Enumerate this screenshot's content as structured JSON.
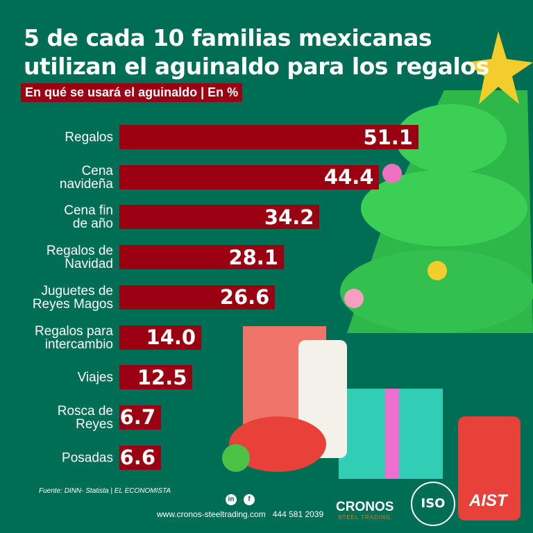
{
  "title_line1": "5 de cada 10 familias mexicanas",
  "title_line2": "utilizan el aguinaldo para los regalos",
  "subtitle": "En qué se usará el aguinaldo | En %",
  "colors": {
    "background": "#006e55",
    "bar": "#9b0012",
    "text": "#ffffff"
  },
  "chart_data": {
    "type": "bar",
    "orientation": "horizontal",
    "title": "En qué se usará el aguinaldo | En %",
    "categories": [
      "Regalos",
      "Cena navideña",
      "Cena fin de año",
      "Regalos de Navidad",
      "Juguetes de Reyes Magos",
      "Regalos para intercambio",
      "Viajes",
      "Rosca de Reyes",
      "Posadas"
    ],
    "category_lines": [
      [
        "Regalos"
      ],
      [
        "Cena",
        "navideña"
      ],
      [
        "Cena fin",
        "de año"
      ],
      [
        "Regalos de",
        "Navidad"
      ],
      [
        "Juguetes de",
        "Reyes Magos"
      ],
      [
        "Regalos para",
        "intercambio"
      ],
      [
        "Viajes"
      ],
      [
        "Rosca de",
        "Reyes"
      ],
      [
        "Posadas"
      ]
    ],
    "values": [
      51.1,
      44.4,
      34.2,
      28.1,
      26.6,
      14.0,
      12.5,
      6.7,
      6.6
    ],
    "value_labels": [
      "51.1",
      "44.4",
      "34.2",
      "28.1",
      "26.6",
      "14.0",
      "12.5",
      "6.7",
      "6.6"
    ],
    "grid": false,
    "legend": "none"
  },
  "footer": {
    "source": "Fuente: DINN- Statista | EL ECONOMISTA",
    "website": "www.cronos-steeltrading.com",
    "phone": "444 581 2039",
    "social_icons": [
      "linkedin-icon",
      "facebook-icon"
    ],
    "linkedin_glyph": "in",
    "facebook_glyph": "f",
    "brand": "CRONOS",
    "brand_sub": "STEEL TRADING",
    "iso": "ISO",
    "aist": "AIST"
  }
}
